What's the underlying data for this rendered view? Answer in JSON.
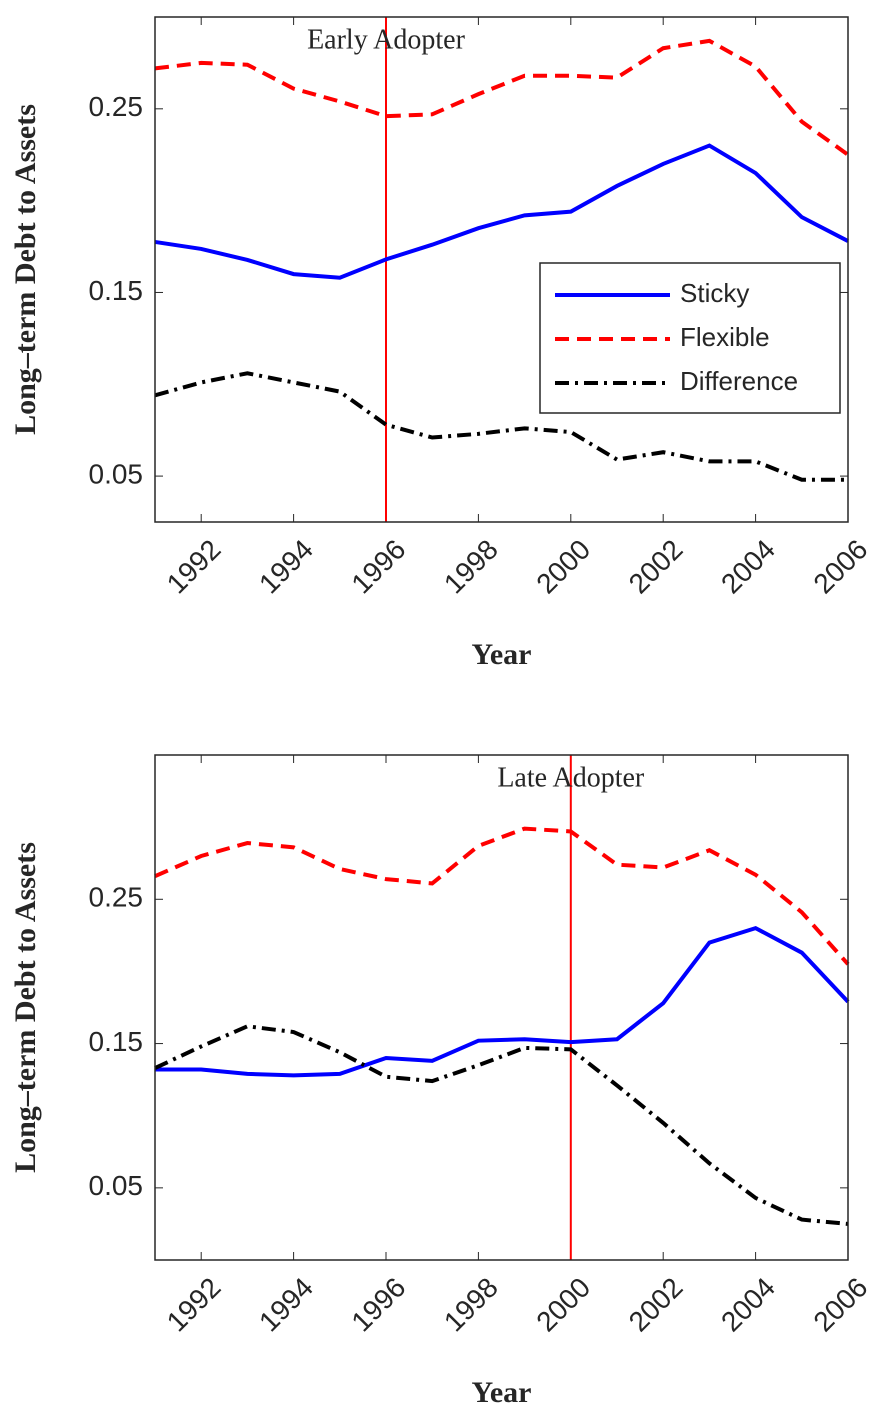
{
  "chart_data": [
    {
      "type": "line",
      "annotation": "Early Adopter",
      "vline": 1996,
      "vline_color": "#ff0000",
      "x_label": "Year",
      "y_label": "Long–term Debt to Assets",
      "x": [
        1991,
        1992,
        1993,
        1994,
        1995,
        1996,
        1997,
        1998,
        1999,
        2000,
        2001,
        2002,
        2003,
        2004,
        2005,
        2006
      ],
      "xlim": [
        1991,
        2006
      ],
      "xticks": [
        1992,
        1994,
        1996,
        1998,
        2000,
        2002,
        2004,
        2006
      ],
      "ylim": [
        0.025,
        0.3
      ],
      "yticks": [
        0.05,
        0.15,
        0.25
      ],
      "legend": "right",
      "series": [
        {
          "name": "Sticky",
          "color": "#0000ff",
          "style": "solid",
          "values": [
            0.1775,
            0.1737,
            0.1677,
            0.16,
            0.158,
            0.168,
            0.176,
            0.185,
            0.192,
            0.194,
            0.208,
            0.22,
            0.23,
            0.215,
            0.191,
            0.178
          ]
        },
        {
          "name": "Flexible",
          "color": "#ff0000",
          "style": "dashed",
          "values": [
            0.272,
            0.275,
            0.274,
            0.261,
            0.254,
            0.246,
            0.247,
            0.258,
            0.268,
            0.268,
            0.267,
            0.283,
            0.287,
            0.273,
            0.243,
            0.225
          ]
        },
        {
          "name": "Difference",
          "color": "#000000",
          "style": "dashdot",
          "values": [
            0.094,
            0.101,
            0.106,
            0.101,
            0.096,
            0.078,
            0.071,
            0.073,
            0.076,
            0.074,
            0.059,
            0.063,
            0.058,
            0.058,
            0.048,
            0.048
          ]
        }
      ]
    },
    {
      "type": "line",
      "annotation": "Late Adopter",
      "vline": 2000,
      "vline_color": "#ff0000",
      "x_label": "Year",
      "y_label": "Long–term Debt to Assets",
      "x": [
        1991,
        1992,
        1993,
        1994,
        1995,
        1996,
        1997,
        1998,
        1999,
        2000,
        2001,
        2002,
        2003,
        2004,
        2005,
        2006
      ],
      "xlim": [
        1991,
        2006
      ],
      "xticks": [
        1992,
        1994,
        1996,
        1998,
        2000,
        2002,
        2004,
        2006
      ],
      "ylim": [
        0,
        0.35
      ],
      "yticks": [
        0.05,
        0.15,
        0.25
      ],
      "series": [
        {
          "name": "Sticky",
          "color": "#0000ff",
          "style": "solid",
          "values": [
            0.132,
            0.132,
            0.129,
            0.128,
            0.129,
            0.14,
            0.138,
            0.152,
            0.153,
            0.151,
            0.153,
            0.178,
            0.22,
            0.23,
            0.213,
            0.179
          ]
        },
        {
          "name": "Flexible",
          "color": "#ff0000",
          "style": "dashed",
          "values": [
            0.266,
            0.28,
            0.289,
            0.286,
            0.271,
            0.264,
            0.261,
            0.287,
            0.299,
            0.297,
            0.274,
            0.272,
            0.284,
            0.267,
            0.241,
            0.205
          ]
        },
        {
          "name": "Difference",
          "color": "#000000",
          "style": "dashdot",
          "values": [
            0.133,
            0.148,
            0.162,
            0.158,
            0.144,
            0.127,
            0.124,
            0.135,
            0.147,
            0.146,
            0.121,
            0.095,
            0.067,
            0.043,
            0.028,
            0.025
          ]
        }
      ]
    }
  ]
}
